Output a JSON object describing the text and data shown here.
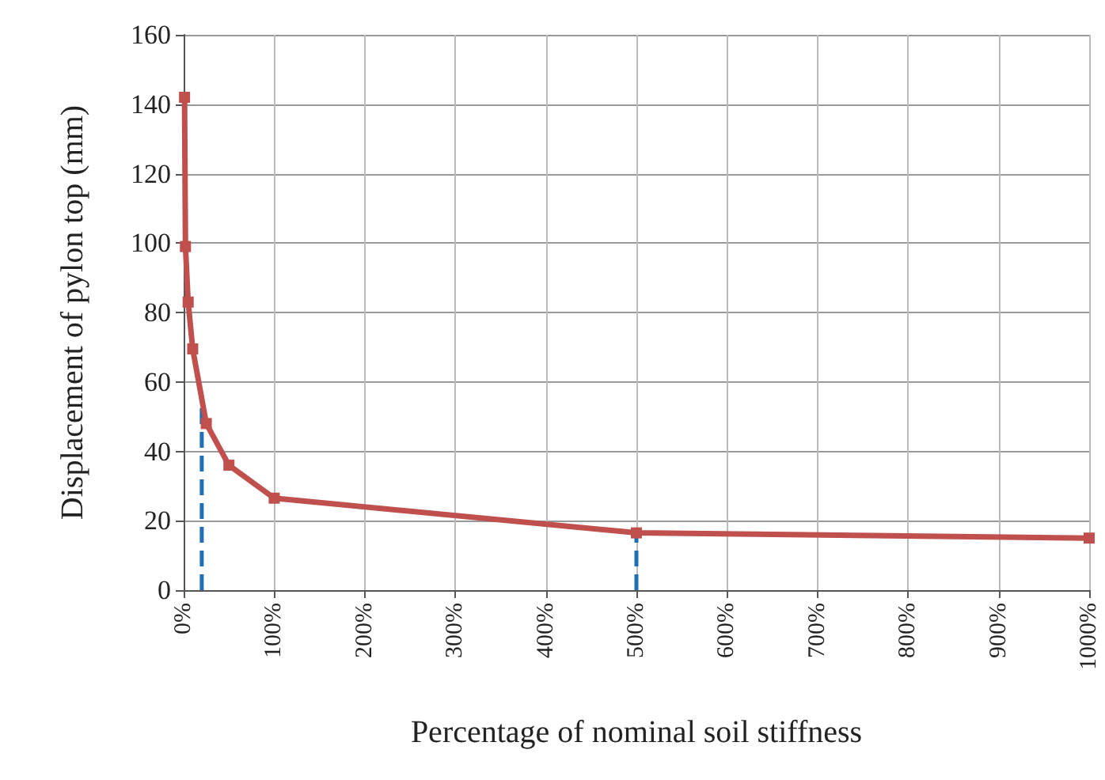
{
  "chart_data": {
    "type": "line",
    "xlabel": "Percentage of nominal soil stiffness",
    "ylabel": "Displacement of pylon top (mm)",
    "x": [
      1,
      2,
      5,
      10,
      25,
      50,
      100,
      500,
      1000
    ],
    "series": [
      {
        "color": "#c0504d",
        "values": [
          142,
          99,
          83,
          69.5,
          48,
          36,
          26.5,
          16.5,
          15
        ]
      }
    ],
    "xlim": [
      0,
      1000
    ],
    "xticks": [
      {
        "value": 0,
        "label": "0%"
      },
      {
        "value": 100,
        "label": "100%"
      },
      {
        "value": 200,
        "label": "200%"
      },
      {
        "value": 300,
        "label": "300%"
      },
      {
        "value": 400,
        "label": "400%"
      },
      {
        "value": 500,
        "label": "500%"
      },
      {
        "value": 600,
        "label": "600%"
      },
      {
        "value": 700,
        "label": "700%"
      },
      {
        "value": 800,
        "label": "800%"
      },
      {
        "value": 900,
        "label": "900%"
      },
      {
        "value": 1000,
        "label": "1000%"
      }
    ],
    "ylim": [
      0,
      160
    ],
    "yticks": [
      0,
      20,
      40,
      60,
      80,
      100,
      120,
      140,
      160
    ],
    "ref_lines": [
      {
        "axis": "x",
        "value": 20,
        "color": "#1f6fb4",
        "line_style": "dashed"
      },
      {
        "axis": "x",
        "value": 500,
        "color": "#1f6fb4",
        "line_style": "dashed"
      }
    ],
    "grid": true,
    "marker": "square",
    "line_style": "solid"
  }
}
